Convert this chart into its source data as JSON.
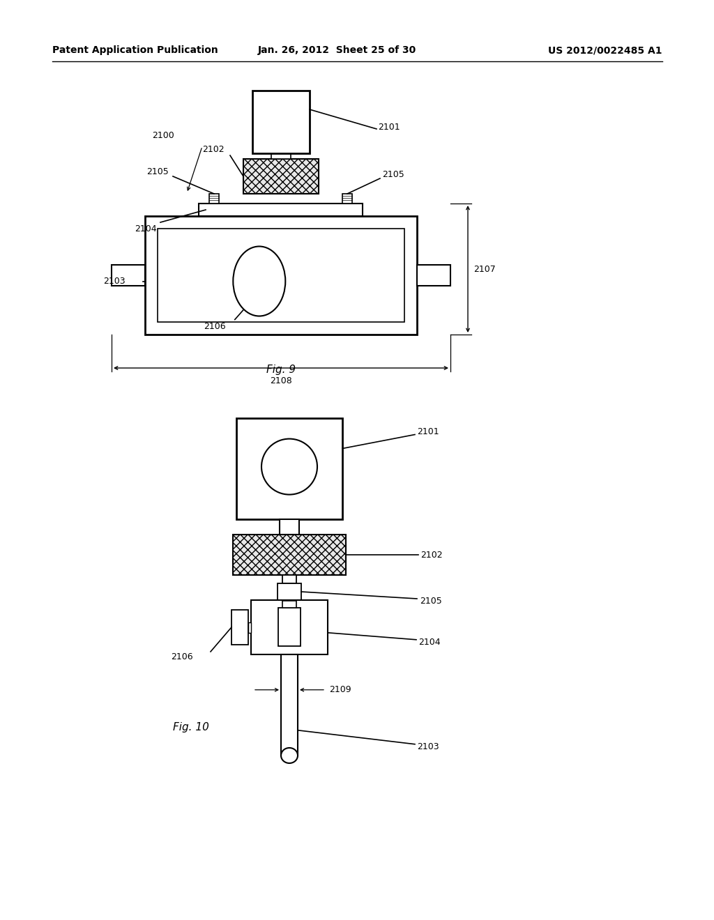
{
  "bg_color": "#ffffff",
  "line_color": "#000000",
  "header_left": "Patent Application Publication",
  "header_mid": "Jan. 26, 2012  Sheet 25 of 30",
  "header_right": "US 2012/0022485 A1",
  "fig9_caption": "Fig. 9",
  "fig10_caption": "Fig. 10"
}
